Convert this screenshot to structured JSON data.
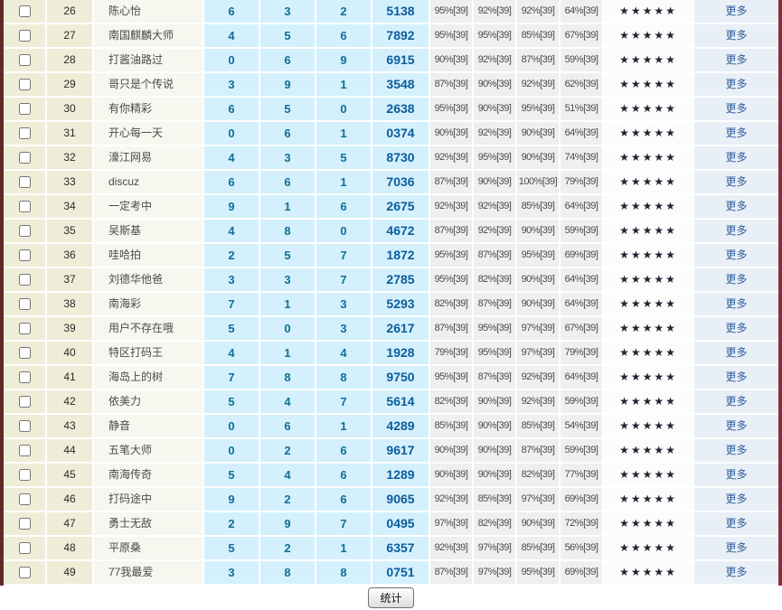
{
  "colors": {
    "left_border": "#5f2b24",
    "right_border": "#8e2b3e",
    "beige_cell": "#efedd8",
    "name_cell": "#f7f7f0",
    "blue_cell": "#d4f0fd",
    "gray_cell": "#efefef",
    "more_cell": "#e9eff6",
    "count_text": "#0f6f96",
    "code_text": "#0b5c9c",
    "link_text": "#2f5e9e"
  },
  "table": {
    "star_char": "★",
    "more_label": "更多",
    "rows": [
      {
        "num": "26",
        "name": "陈心怡",
        "counts": [
          "6",
          "3",
          "2"
        ],
        "code": "5138",
        "pcts": [
          "95%[39]",
          "92%[39]",
          "92%[39]",
          "64%[39]"
        ],
        "rating": 5
      },
      {
        "num": "27",
        "name": "南国麒麟大师",
        "counts": [
          "4",
          "5",
          "6"
        ],
        "code": "7892",
        "pcts": [
          "95%[39]",
          "95%[39]",
          "85%[39]",
          "67%[39]"
        ],
        "rating": 5
      },
      {
        "num": "28",
        "name": "打酱油路过",
        "counts": [
          "0",
          "6",
          "9"
        ],
        "code": "6915",
        "pcts": [
          "90%[39]",
          "92%[39]",
          "87%[39]",
          "59%[39]"
        ],
        "rating": 5
      },
      {
        "num": "29",
        "name": "哥只是个传说",
        "counts": [
          "3",
          "9",
          "1"
        ],
        "code": "3548",
        "pcts": [
          "87%[39]",
          "90%[39]",
          "92%[39]",
          "62%[39]"
        ],
        "rating": 5
      },
      {
        "num": "30",
        "name": "有你精彩",
        "counts": [
          "6",
          "5",
          "0"
        ],
        "code": "2638",
        "pcts": [
          "95%[39]",
          "90%[39]",
          "95%[39]",
          "51%[39]"
        ],
        "rating": 5
      },
      {
        "num": "31",
        "name": "开心每一天",
        "counts": [
          "0",
          "6",
          "1"
        ],
        "code": "0374",
        "pcts": [
          "90%[39]",
          "92%[39]",
          "90%[39]",
          "64%[39]"
        ],
        "rating": 5
      },
      {
        "num": "32",
        "name": "濠江网易",
        "counts": [
          "4",
          "3",
          "5"
        ],
        "code": "8730",
        "pcts": [
          "92%[39]",
          "95%[39]",
          "90%[39]",
          "74%[39]"
        ],
        "rating": 5
      },
      {
        "num": "33",
        "name": "discuz",
        "counts": [
          "6",
          "6",
          "1"
        ],
        "code": "7036",
        "pcts": [
          "87%[39]",
          "90%[39]",
          "100%[39]",
          "79%[39]"
        ],
        "rating": 5
      },
      {
        "num": "34",
        "name": "一定考中",
        "counts": [
          "9",
          "1",
          "6"
        ],
        "code": "2675",
        "pcts": [
          "92%[39]",
          "92%[39]",
          "85%[39]",
          "64%[39]"
        ],
        "rating": 5
      },
      {
        "num": "35",
        "name": "吴斯基",
        "counts": [
          "4",
          "8",
          "0"
        ],
        "code": "4672",
        "pcts": [
          "87%[39]",
          "92%[39]",
          "90%[39]",
          "59%[39]"
        ],
        "rating": 5
      },
      {
        "num": "36",
        "name": "哇哈拍",
        "counts": [
          "2",
          "5",
          "7"
        ],
        "code": "1872",
        "pcts": [
          "95%[39]",
          "87%[39]",
          "95%[39]",
          "69%[39]"
        ],
        "rating": 5
      },
      {
        "num": "37",
        "name": "刘德华他爸",
        "counts": [
          "3",
          "3",
          "7"
        ],
        "code": "2785",
        "pcts": [
          "95%[39]",
          "82%[39]",
          "90%[39]",
          "64%[39]"
        ],
        "rating": 5
      },
      {
        "num": "38",
        "name": "南海彩",
        "counts": [
          "7",
          "1",
          "3"
        ],
        "code": "5293",
        "pcts": [
          "82%[39]",
          "87%[39]",
          "90%[39]",
          "64%[39]"
        ],
        "rating": 5
      },
      {
        "num": "39",
        "name": "用户不存在哦",
        "counts": [
          "5",
          "0",
          "3"
        ],
        "code": "2617",
        "pcts": [
          "87%[39]",
          "95%[39]",
          "97%[39]",
          "67%[39]"
        ],
        "rating": 5
      },
      {
        "num": "40",
        "name": "特区打码王",
        "counts": [
          "4",
          "1",
          "4"
        ],
        "code": "1928",
        "pcts": [
          "79%[39]",
          "95%[39]",
          "97%[39]",
          "79%[39]"
        ],
        "rating": 5
      },
      {
        "num": "41",
        "name": "海岛上的树",
        "counts": [
          "7",
          "8",
          "8"
        ],
        "code": "9750",
        "pcts": [
          "95%[39]",
          "87%[39]",
          "92%[39]",
          "64%[39]"
        ],
        "rating": 5
      },
      {
        "num": "42",
        "name": "依美力",
        "counts": [
          "5",
          "4",
          "7"
        ],
        "code": "5614",
        "pcts": [
          "82%[39]",
          "90%[39]",
          "92%[39]",
          "59%[39]"
        ],
        "rating": 5
      },
      {
        "num": "43",
        "name": "静音",
        "counts": [
          "0",
          "6",
          "1"
        ],
        "code": "4289",
        "pcts": [
          "85%[39]",
          "90%[39]",
          "85%[39]",
          "54%[39]"
        ],
        "rating": 5
      },
      {
        "num": "44",
        "name": "五笔大师",
        "counts": [
          "0",
          "2",
          "6"
        ],
        "code": "9617",
        "pcts": [
          "90%[39]",
          "90%[39]",
          "87%[39]",
          "59%[39]"
        ],
        "rating": 5
      },
      {
        "num": "45",
        "name": "南海传奇",
        "counts": [
          "5",
          "4",
          "6"
        ],
        "code": "1289",
        "pcts": [
          "90%[39]",
          "90%[39]",
          "82%[39]",
          "77%[39]"
        ],
        "rating": 5
      },
      {
        "num": "46",
        "name": "打码途中",
        "counts": [
          "9",
          "2",
          "6"
        ],
        "code": "9065",
        "pcts": [
          "92%[39]",
          "85%[39]",
          "97%[39]",
          "69%[39]"
        ],
        "rating": 5
      },
      {
        "num": "47",
        "name": "勇士无敌",
        "counts": [
          "2",
          "9",
          "7"
        ],
        "code": "0495",
        "pcts": [
          "97%[39]",
          "82%[39]",
          "90%[39]",
          "72%[39]"
        ],
        "rating": 5
      },
      {
        "num": "48",
        "name": "平原桑",
        "counts": [
          "5",
          "2",
          "1"
        ],
        "code": "6357",
        "pcts": [
          "92%[39]",
          "97%[39]",
          "85%[39]",
          "56%[39]"
        ],
        "rating": 5
      },
      {
        "num": "49",
        "name": "77我最爱",
        "counts": [
          "3",
          "8",
          "8"
        ],
        "code": "0751",
        "pcts": [
          "87%[39]",
          "97%[39]",
          "95%[39]",
          "69%[39]"
        ],
        "rating": 5
      }
    ]
  },
  "footer": {
    "stats_button": "统计"
  }
}
